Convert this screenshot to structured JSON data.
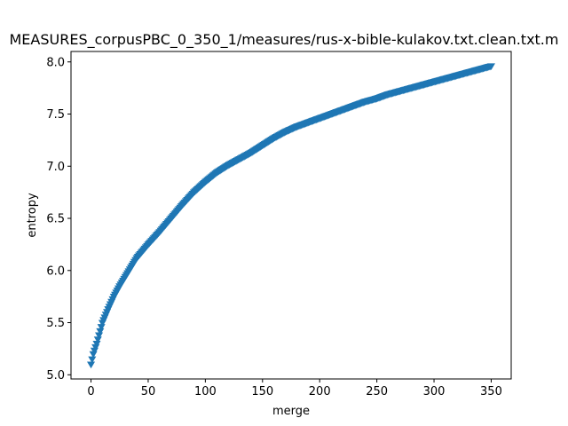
{
  "chart_data": {
    "type": "scatter",
    "title": "MEASURES_corpusPBC_0_350_1/measures/rus-x-bible-kulakov.txt.clean.txt.m",
    "xlabel": "merge",
    "ylabel": "entropy",
    "xlim": [
      -17.5,
      367.5
    ],
    "ylim": [
      4.96,
      8.1
    ],
    "xticks": [
      0,
      50,
      100,
      150,
      200,
      250,
      300,
      350
    ],
    "yticks": [
      5.0,
      5.5,
      6.0,
      6.5,
      7.0,
      7.5,
      8.0
    ],
    "marker": "triangle-down",
    "color": "#1f77b4",
    "grid": false,
    "series": [
      {
        "x": [
          0,
          2,
          5,
          10,
          15,
          20,
          25,
          30,
          40,
          50,
          60,
          70,
          80,
          90,
          100,
          110,
          120,
          130,
          140,
          150,
          160,
          170,
          180,
          190,
          200,
          210,
          220,
          230,
          240,
          250,
          260,
          270,
          280,
          290,
          300,
          310,
          320,
          330,
          340,
          350
        ],
        "y": [
          5.1,
          5.2,
          5.3,
          5.5,
          5.63,
          5.75,
          5.85,
          5.94,
          6.12,
          6.25,
          6.37,
          6.5,
          6.63,
          6.75,
          6.85,
          6.94,
          7.01,
          7.07,
          7.13,
          7.2,
          7.27,
          7.33,
          7.38,
          7.42,
          7.46,
          7.5,
          7.54,
          7.58,
          7.62,
          7.65,
          7.69,
          7.72,
          7.75,
          7.78,
          7.81,
          7.84,
          7.87,
          7.9,
          7.93,
          7.96
        ]
      }
    ]
  }
}
